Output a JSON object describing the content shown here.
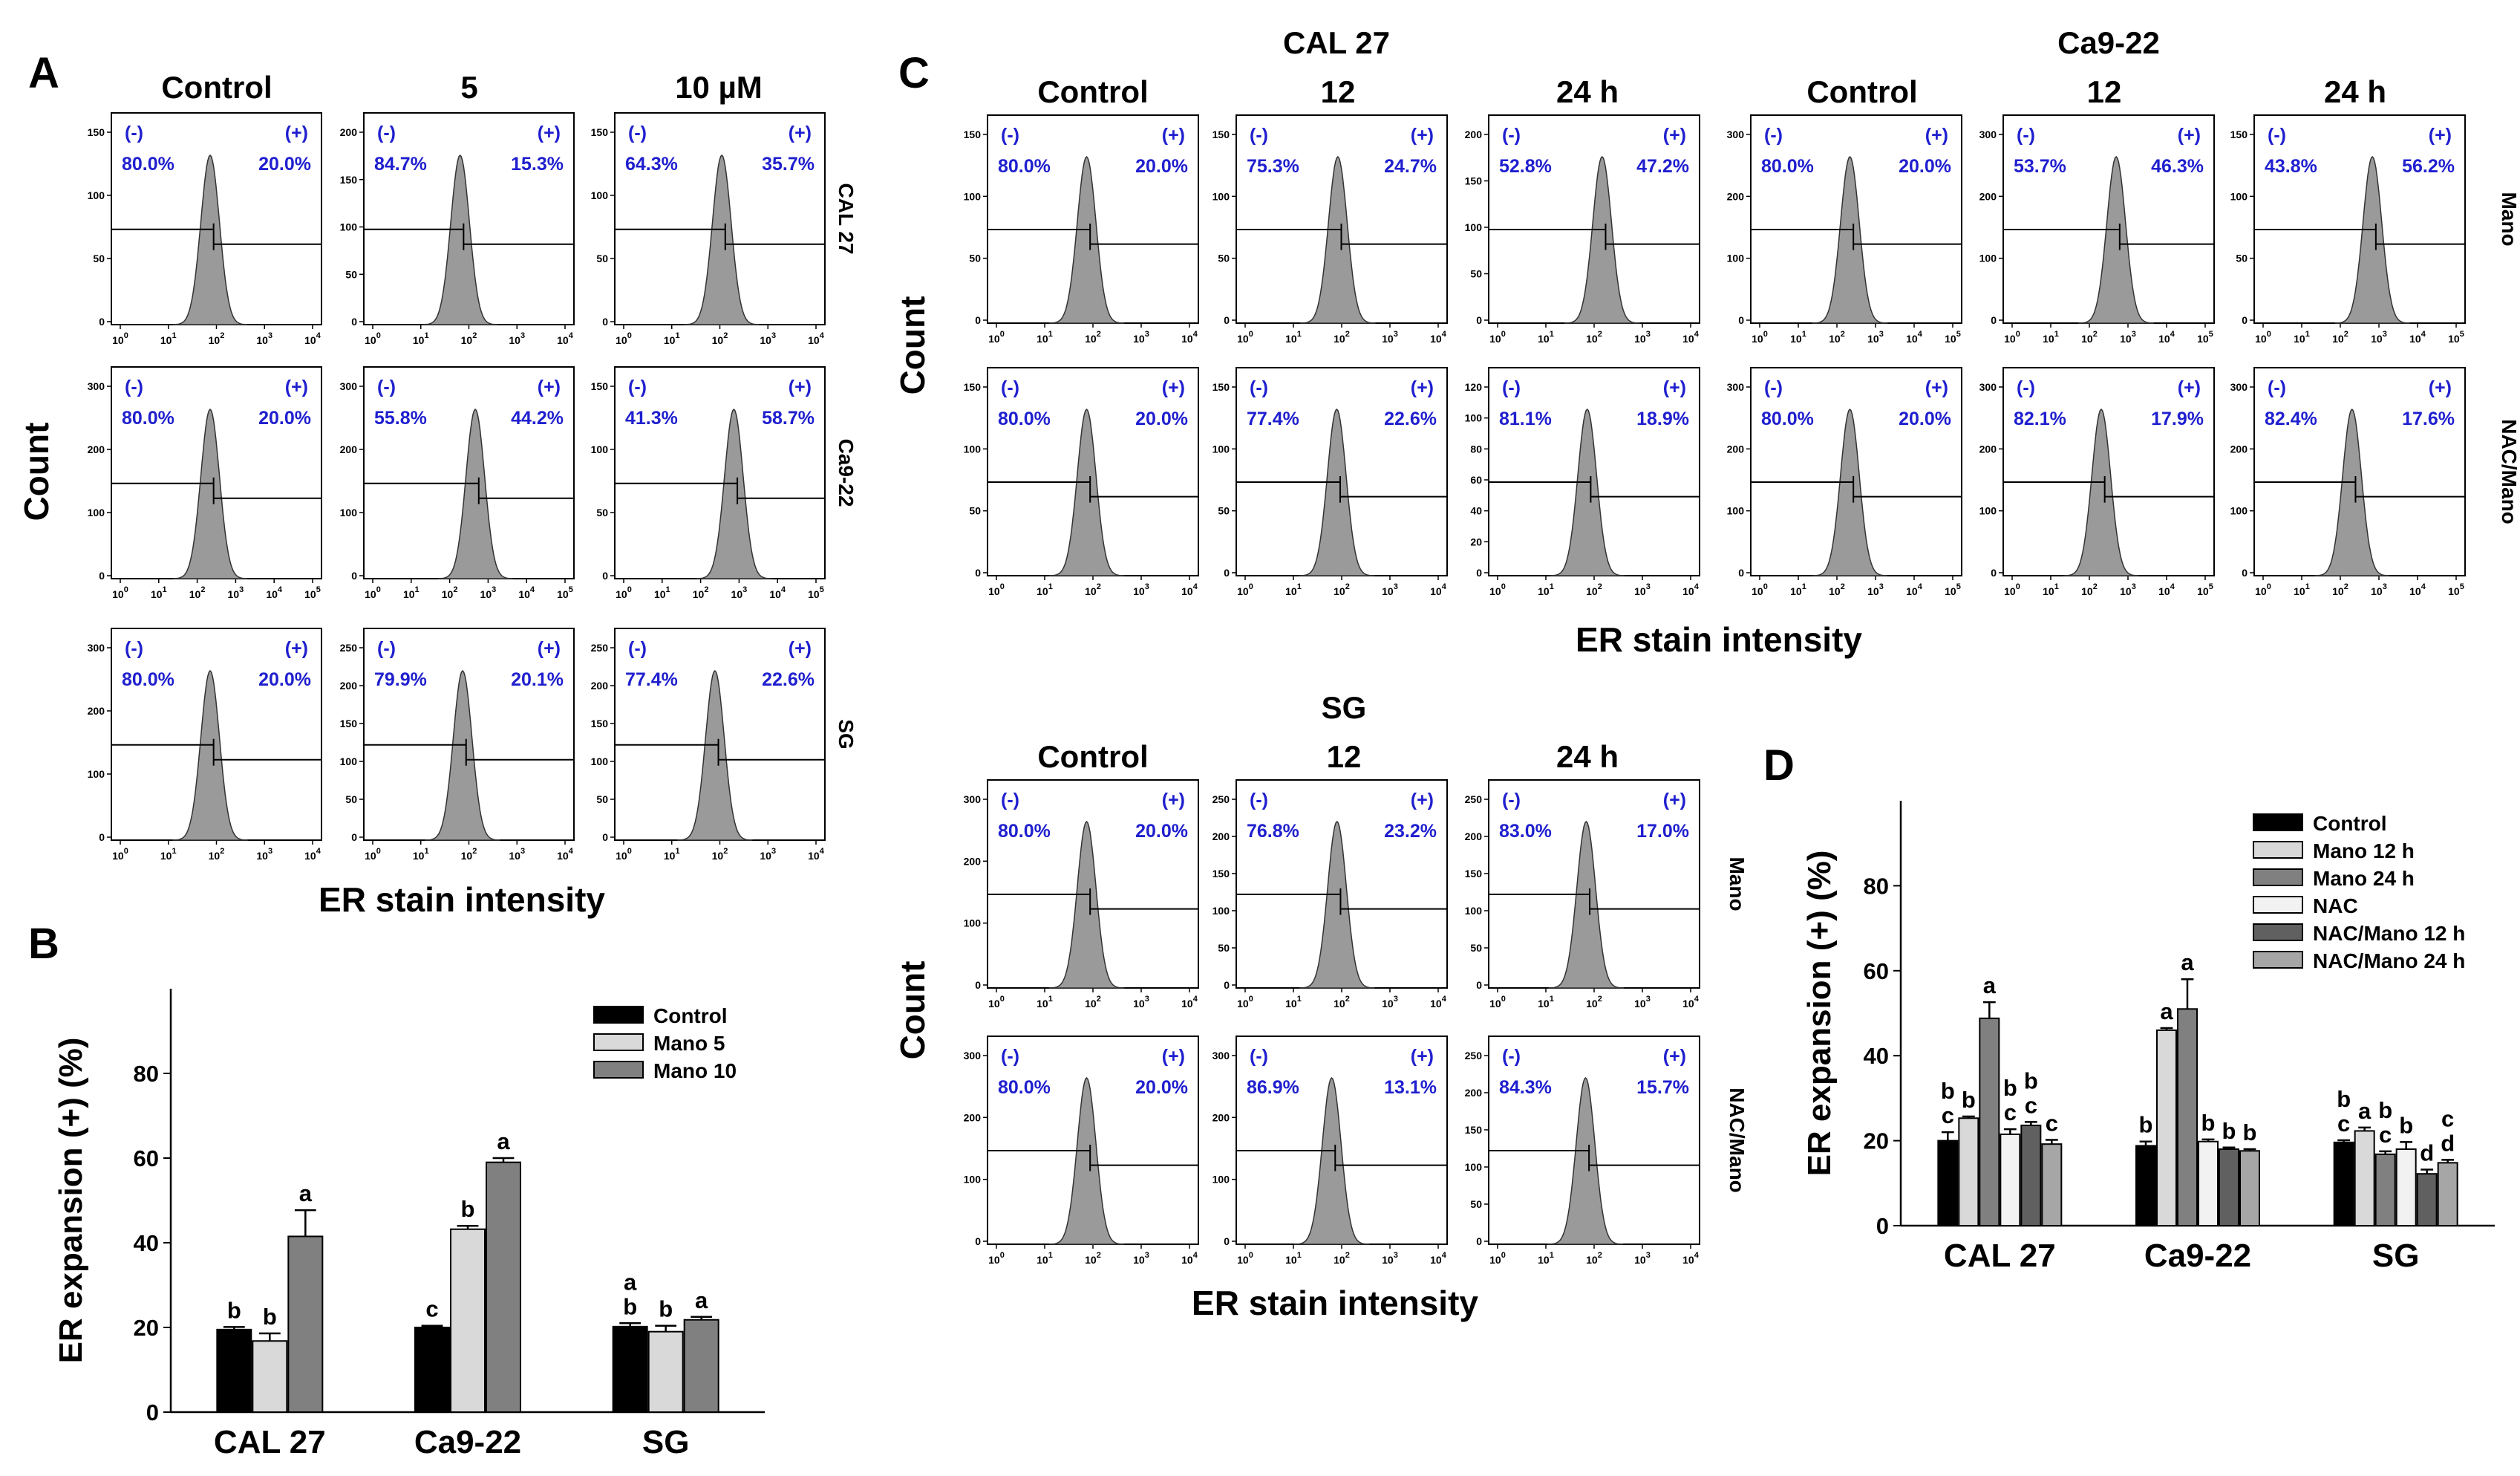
{
  "panel_labels": {
    "A": "A",
    "B": "B",
    "C": "C",
    "D": "D"
  },
  "panelA": {
    "col_headers": [
      "Control",
      "5",
      "10 µM"
    ],
    "row_labels": [
      "CAL 27",
      "Ca9-22",
      "SG"
    ],
    "ylabel": "Count",
    "xlabel": "ER stain intensity",
    "neg_label": "(-)",
    "pos_label": "(+)",
    "rows": [
      {
        "y_ticks": [
          [
            "0",
            "50",
            "100",
            "150"
          ],
          [
            "0",
            "50",
            "100",
            "150",
            "200"
          ],
          [
            "0",
            "50",
            "100",
            "150"
          ]
        ],
        "x_max_exp": [
          4,
          4,
          4
        ],
        "neg": [
          "80.0%",
          "84.7%",
          "64.3%"
        ],
        "pos": [
          "20.0%",
          "15.3%",
          "35.7%"
        ]
      },
      {
        "y_ticks": [
          [
            "0",
            "100",
            "200",
            "300"
          ],
          [
            "0",
            "100",
            "200",
            "300"
          ],
          [
            "0",
            "50",
            "100",
            "150"
          ]
        ],
        "x_max_exp": [
          5,
          5,
          5
        ],
        "neg": [
          "80.0%",
          "55.8%",
          "41.3%"
        ],
        "pos": [
          "20.0%",
          "44.2%",
          "58.7%"
        ]
      },
      {
        "y_ticks": [
          [
            "0",
            "100",
            "200",
            "300"
          ],
          [
            "0",
            "50",
            "100",
            "150",
            "200",
            "250"
          ],
          [
            "0",
            "50",
            "100",
            "150",
            "200",
            "250"
          ]
        ],
        "x_max_exp": [
          4,
          4,
          4
        ],
        "neg": [
          "80.0%",
          "79.9%",
          "77.4%"
        ],
        "pos": [
          "20.0%",
          "20.1%",
          "22.6%"
        ]
      }
    ]
  },
  "panelC": {
    "titles": [
      "CAL 27",
      "Ca9-22"
    ],
    "col_headers": [
      "Control",
      "12",
      "24 h",
      "Control",
      "12",
      "24 h"
    ],
    "row_labels": [
      "Mano",
      "NAC/Mano"
    ],
    "ylabel": "Count",
    "xlabel": "ER stain intensity",
    "rows": [
      {
        "y_ticks": [
          [
            "0",
            "50",
            "100",
            "150"
          ],
          [
            "0",
            "50",
            "100",
            "150"
          ],
          [
            "0",
            "50",
            "100",
            "150",
            "200"
          ],
          [
            "0",
            "100",
            "200",
            "300"
          ],
          [
            "0",
            "100",
            "200",
            "300"
          ],
          [
            "0",
            "50",
            "100",
            "150"
          ]
        ],
        "x_max_exp": [
          4,
          4,
          4,
          5,
          5,
          5
        ],
        "neg": [
          "80.0%",
          "75.3%",
          "52.8%",
          "80.0%",
          "53.7%",
          "43.8%"
        ],
        "pos": [
          "20.0%",
          "24.7%",
          "47.2%",
          "20.0%",
          "46.3%",
          "56.2%"
        ]
      },
      {
        "y_ticks": [
          [
            "0",
            "50",
            "100",
            "150"
          ],
          [
            "0",
            "50",
            "100",
            "150"
          ],
          [
            "0",
            "20",
            "40",
            "60",
            "80",
            "100",
            "120"
          ],
          [
            "0",
            "100",
            "200",
            "300"
          ],
          [
            "0",
            "100",
            "200",
            "300"
          ],
          [
            "0",
            "100",
            "200",
            "300"
          ]
        ],
        "x_max_exp": [
          4,
          4,
          4,
          5,
          5,
          5
        ],
        "neg": [
          "80.0%",
          "77.4%",
          "81.1%",
          "80.0%",
          "82.1%",
          "82.4%"
        ],
        "pos": [
          "20.0%",
          "22.6%",
          "18.9%",
          "20.0%",
          "17.9%",
          "17.6%"
        ]
      }
    ]
  },
  "panelSG": {
    "title": "SG",
    "col_headers": [
      "Control",
      "12",
      "24 h"
    ],
    "row_labels": [
      "Mano",
      "NAC/Mano"
    ],
    "ylabel": "Count",
    "xlabel": "ER stain intensity",
    "rows": [
      {
        "y_ticks": [
          [
            "0",
            "100",
            "200",
            "300"
          ],
          [
            "0",
            "50",
            "100",
            "150",
            "200",
            "250"
          ],
          [
            "0",
            "50",
            "100",
            "150",
            "200",
            "250"
          ]
        ],
        "x_max_exp": [
          4,
          4,
          4
        ],
        "neg": [
          "80.0%",
          "76.8%",
          "83.0%"
        ],
        "pos": [
          "20.0%",
          "23.2%",
          "17.0%"
        ]
      },
      {
        "y_ticks": [
          [
            "0",
            "100",
            "200",
            "300"
          ],
          [
            "0",
            "100",
            "200",
            "300"
          ],
          [
            "0",
            "50",
            "100",
            "150",
            "200",
            "250"
          ]
        ],
        "x_max_exp": [
          4,
          4,
          4
        ],
        "neg": [
          "80.0%",
          "86.9%",
          "84.3%"
        ],
        "pos": [
          "20.0%",
          "13.1%",
          "15.7%"
        ]
      }
    ]
  },
  "chart_data": [
    {
      "id": "B",
      "type": "bar",
      "title": "",
      "xlabel": "",
      "ylabel": "ER expansion (+) (%)",
      "ylim": [
        0,
        100
      ],
      "y_ticks": [
        0,
        20,
        40,
        60,
        80
      ],
      "categories": [
        "CAL 27",
        "Ca9-22",
        "SG"
      ],
      "legend_position": "top-right",
      "series": [
        {
          "name": "Control",
          "color": "#000000",
          "values": [
            19.5,
            20.0,
            20.2
          ],
          "errors": [
            0.6,
            0.4,
            0.8
          ],
          "letters": [
            "b",
            "c",
            "a\nb"
          ]
        },
        {
          "name": "Mano 5",
          "color": "#d9d9d9",
          "values": [
            16.8,
            43.2,
            19.0
          ],
          "errors": [
            1.8,
            0.8,
            1.4
          ],
          "letters": [
            "b",
            "b",
            "b"
          ]
        },
        {
          "name": "Mano 10",
          "color": "#808080",
          "values": [
            41.5,
            59.0,
            21.8
          ],
          "errors": [
            6.2,
            1.0,
            0.7
          ],
          "letters": [
            "a",
            "a",
            "a"
          ]
        }
      ]
    },
    {
      "id": "D",
      "type": "bar",
      "title": "",
      "xlabel": "",
      "ylabel": "ER expansion (+) (%)",
      "ylim": [
        0,
        100
      ],
      "y_ticks": [
        0,
        20,
        40,
        60,
        80
      ],
      "categories": [
        "CAL 27",
        "Ca9-22",
        "SG"
      ],
      "legend_position": "top-right",
      "series": [
        {
          "name": "Control",
          "color": "#000000",
          "values": [
            20.0,
            18.8,
            19.6
          ],
          "errors": [
            2.0,
            1.0,
            0.5
          ],
          "letters": [
            "b\nc",
            "b",
            "b\nc"
          ]
        },
        {
          "name": "Mano 12 h",
          "color": "#d9d9d9",
          "values": [
            25.3,
            46.0,
            22.3
          ],
          "errors": [
            0.4,
            0.5,
            0.8
          ],
          "letters": [
            "b",
            "a",
            "a"
          ]
        },
        {
          "name": "Mano 24 h",
          "color": "#808080",
          "values": [
            48.8,
            51.0,
            16.8
          ],
          "errors": [
            3.8,
            7.0,
            0.7
          ],
          "letters": [
            "a",
            "a",
            "b\nc"
          ]
        },
        {
          "name": "NAC",
          "color": "#f2f2f2",
          "values": [
            21.5,
            19.8,
            18.0
          ],
          "errors": [
            1.2,
            0.5,
            1.7
          ],
          "letters": [
            "b\nc",
            "b",
            "b"
          ]
        },
        {
          "name": "NAC/Mano 12 h",
          "color": "#606060",
          "values": [
            23.6,
            18.0,
            12.2
          ],
          "errors": [
            0.8,
            0.4,
            1.0
          ],
          "letters": [
            "b\nc",
            "b",
            "d"
          ]
        },
        {
          "name": "NAC/Mano 24 h",
          "color": "#a6a6a6",
          "values": [
            19.2,
            17.6,
            14.8
          ],
          "errors": [
            1.0,
            0.4,
            0.7
          ],
          "letters": [
            "c",
            "b",
            "c\nd"
          ]
        }
      ]
    }
  ]
}
